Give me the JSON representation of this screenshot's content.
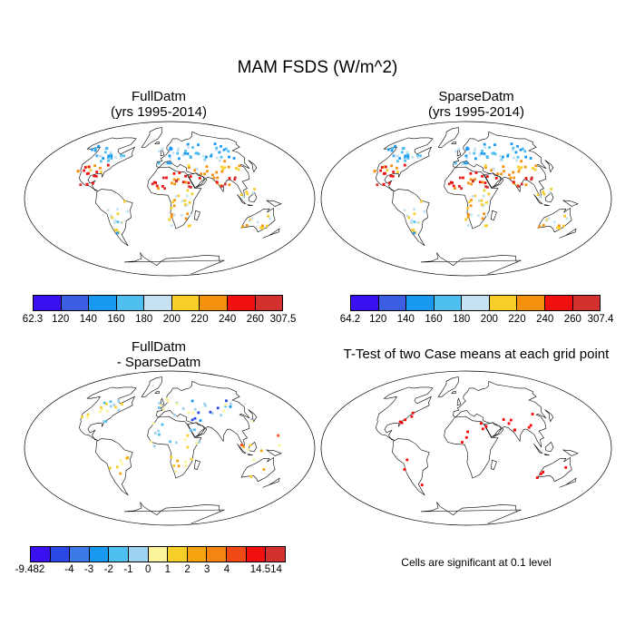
{
  "title": "MAM FSDS (W/m^2)",
  "panels": {
    "p1": {
      "title1": "FullDatm",
      "title2": "(yrs 1995-2014)"
    },
    "p2": {
      "title1": "SparseDatm",
      "title2": "(yrs 1995-2014)"
    },
    "p3": {
      "title1": "FullDatm",
      "title2": "- SparseDatm"
    },
    "p4": {
      "title1": "T-Test of two Case means at each grid point",
      "note": "Cells are significant at 0.1 level"
    }
  },
  "colorbars": {
    "cb1": {
      "colors": [
        "#3a10f0",
        "#3b5fe0",
        "#1898f0",
        "#4fbff0",
        "#c6e2f2",
        "#f7cf28",
        "#f5920d",
        "#f01010",
        "#d2312e"
      ],
      "labels": [
        "62.3",
        "120",
        "140",
        "160",
        "180",
        "200",
        "220",
        "240",
        "260",
        "307.5"
      ]
    },
    "cb2": {
      "colors": [
        "#3a10f0",
        "#3b5fe0",
        "#1898f0",
        "#4fbff0",
        "#c6e2f2",
        "#f7cf28",
        "#f5920d",
        "#f01010",
        "#d2312e"
      ],
      "labels": [
        "64.2",
        "120",
        "140",
        "160",
        "180",
        "200",
        "220",
        "240",
        "260",
        "307.4"
      ]
    },
    "cb3": {
      "colors": [
        "#3a10f0",
        "#2b48e6",
        "#3b7ae8",
        "#1898f0",
        "#4fbff0",
        "#9dd3f0",
        "#fbf49a",
        "#f7cf28",
        "#f5a30e",
        "#f58410",
        "#f24a14",
        "#f01010",
        "#d2312e"
      ],
      "labels": [
        "-9.482",
        "",
        "-4",
        "-3",
        "-2",
        "-1",
        "0",
        "1",
        "2",
        "3",
        "4",
        "",
        "14.514"
      ]
    }
  }
}
